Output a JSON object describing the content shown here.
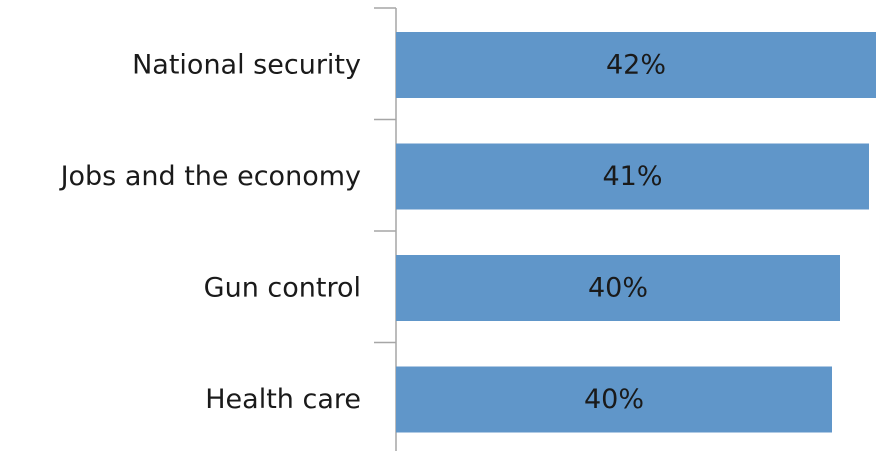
{
  "chart_data": {
    "type": "bar",
    "orientation": "horizontal",
    "categories": [
      "National security",
      "Jobs and the economy",
      "Gun control",
      "Health care"
    ],
    "values": [
      42,
      41,
      40,
      40
    ],
    "value_labels": [
      "42%",
      "41%",
      "40%",
      "40%"
    ],
    "title": "",
    "xlabel": "",
    "ylabel": "",
    "grid": false,
    "legend": "none",
    "colors": {
      "bar": "#6096c9",
      "axis": "#a6a6a6",
      "text": "#1a1a1a"
    }
  }
}
